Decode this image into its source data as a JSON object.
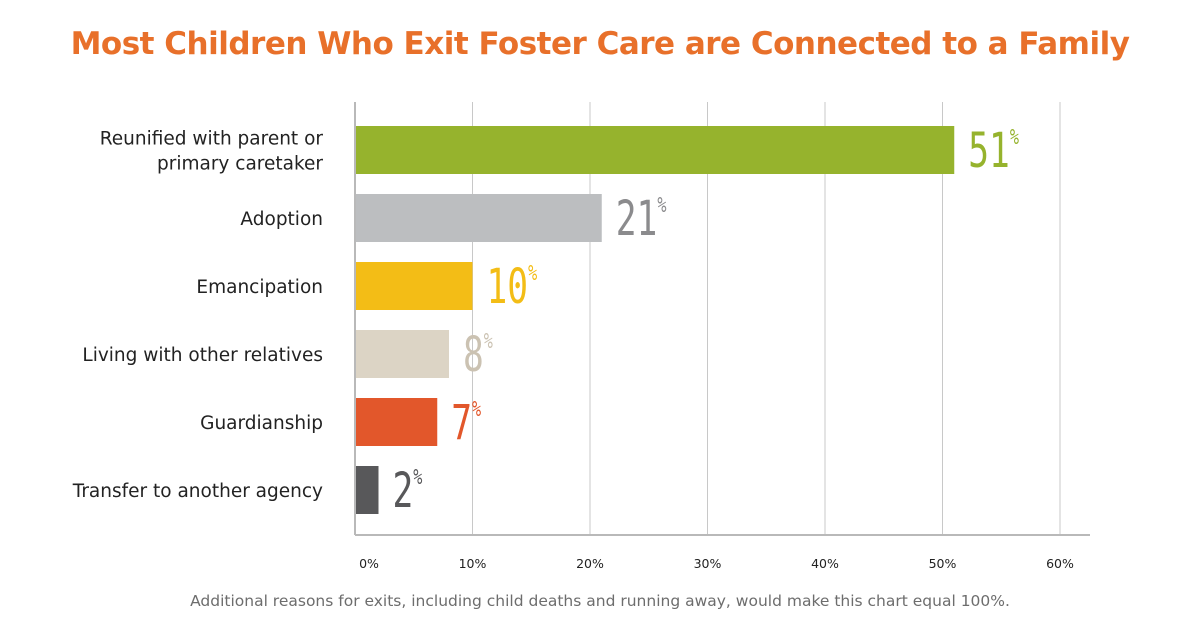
{
  "colors": {
    "title": "#e8702a",
    "footnote": "#6d6d6d",
    "grid": "#c8c8c8",
    "axis": "#b9b9b9",
    "category_text": "#222222",
    "tick_text": "#222222"
  },
  "chart_data": {
    "type": "bar",
    "orientation": "horizontal",
    "title": "Most Children Who Exit Foster Care are Connected to a Family",
    "xlabel": "",
    "ylabel": "",
    "xlim": [
      0,
      60
    ],
    "xticks": [
      0,
      10,
      20,
      30,
      40,
      50,
      60
    ],
    "xtick_labels": [
      "0%",
      "10%",
      "20%",
      "30%",
      "40%",
      "50%",
      "60%"
    ],
    "grid": true,
    "legend": "none",
    "categories": [
      "Reunified with parent or primary caretaker",
      "Adoption",
      "Emancipation",
      "Living with other relatives",
      "Guardianship",
      "Transfer to another agency"
    ],
    "category_lines": [
      [
        "Reunified with parent or",
        "primary caretaker"
      ],
      [
        "Adoption"
      ],
      [
        "Emancipation"
      ],
      [
        "Living with other relatives"
      ],
      [
        "Guardianship"
      ],
      [
        "Transfer to another agency"
      ]
    ],
    "values": [
      51,
      21,
      10,
      8,
      7,
      2
    ],
    "data_labels": [
      "51",
      "21",
      "10",
      "8",
      "7",
      "2"
    ],
    "data_label_suffix": "%",
    "bar_colors": [
      "#96b32d",
      "#bcbec0",
      "#f3bd16",
      "#dcd4c5",
      "#e2572b",
      "#58585a"
    ],
    "label_colors": [
      "#96b32d",
      "#8b8b8d",
      "#f3bd16",
      "#cbc2b2",
      "#e2572b",
      "#58585a"
    ]
  },
  "footnote": "Additional reasons for exits, including child deaths and running away, would make this chart equal 100%."
}
